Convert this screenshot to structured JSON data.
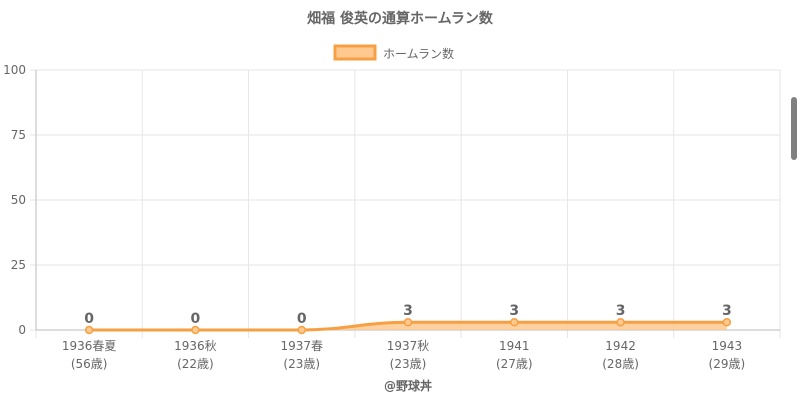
{
  "chart_data": {
    "type": "area",
    "title": "畑福 俊英の通算ホームラン数",
    "categories": [
      "1936春夏",
      "1936秋",
      "1937春",
      "1937秋",
      "1941",
      "1942",
      "1943"
    ],
    "sub_labels": [
      "(56歳)",
      "(22歳)",
      "(23歳)",
      "(23歳)",
      "(27歳)",
      "(28歳)",
      "(29歳)"
    ],
    "series": [
      {
        "name": "ホームラン数",
        "values": [
          0,
          0,
          0,
          3,
          3,
          3,
          3
        ]
      }
    ],
    "data_labels": [
      "0",
      "0",
      "0",
      "3",
      "3",
      "3",
      "3"
    ],
    "ylim": [
      0,
      100
    ],
    "yticks": [
      {
        "value": 0,
        "label": "0"
      },
      {
        "value": 25,
        "label": "25"
      },
      {
        "value": 50,
        "label": "50"
      },
      {
        "value": 75,
        "label": "75"
      },
      {
        "value": 100,
        "label": "100"
      }
    ],
    "grid": true,
    "legend": "top-center",
    "footer": "@野球丼",
    "colors": {
      "line": "#f7a043",
      "fill": "#ffc98f",
      "grid": "#e6e6e6",
      "text": "#666666",
      "axis": "#bbbbbb"
    }
  }
}
